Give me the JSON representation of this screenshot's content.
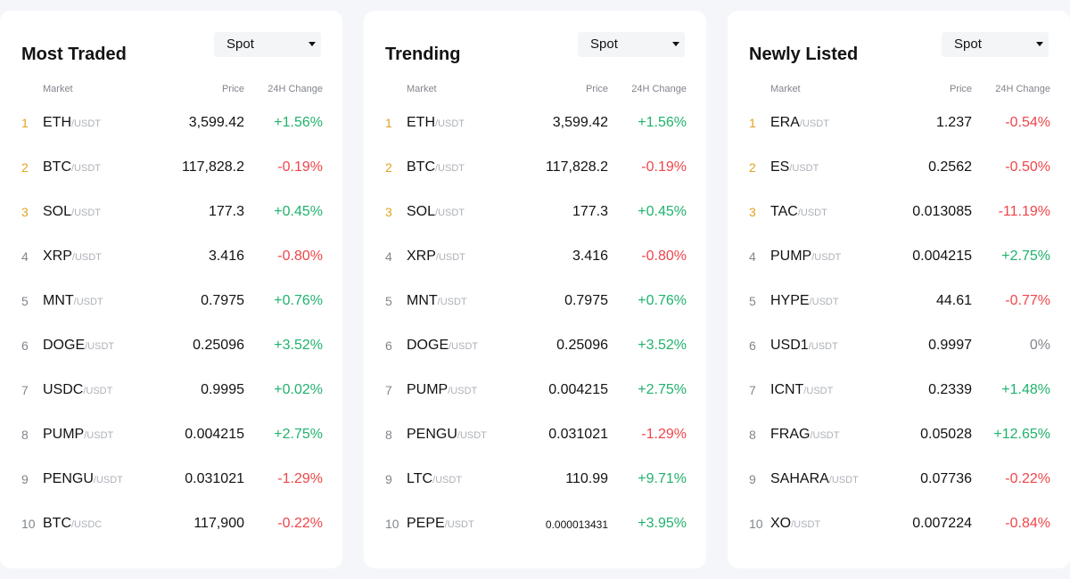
{
  "colors": {
    "up": "#20b26c",
    "down": "#ef454a",
    "top_rank": "#e0a320"
  },
  "headers": {
    "market": "Market",
    "price": "Price",
    "change": "24H Change"
  },
  "panels": [
    {
      "title": "Most Traded",
      "filter": "Spot",
      "rows": [
        {
          "rank": "1",
          "base": "ETH",
          "quote": "/USDT",
          "price": "3,599.42",
          "change": "+1.56%",
          "trend": "up"
        },
        {
          "rank": "2",
          "base": "BTC",
          "quote": "/USDT",
          "price": "117,828.2",
          "change": "-0.19%",
          "trend": "down"
        },
        {
          "rank": "3",
          "base": "SOL",
          "quote": "/USDT",
          "price": "177.3",
          "change": "+0.45%",
          "trend": "up"
        },
        {
          "rank": "4",
          "base": "XRP",
          "quote": "/USDT",
          "price": "3.416",
          "change": "-0.80%",
          "trend": "down"
        },
        {
          "rank": "5",
          "base": "MNT",
          "quote": "/USDT",
          "price": "0.7975",
          "change": "+0.76%",
          "trend": "up"
        },
        {
          "rank": "6",
          "base": "DOGE",
          "quote": "/USDT",
          "price": "0.25096",
          "change": "+3.52%",
          "trend": "up"
        },
        {
          "rank": "7",
          "base": "USDC",
          "quote": "/USDT",
          "price": "0.9995",
          "change": "+0.02%",
          "trend": "up"
        },
        {
          "rank": "8",
          "base": "PUMP",
          "quote": "/USDT",
          "price": "0.004215",
          "change": "+2.75%",
          "trend": "up"
        },
        {
          "rank": "9",
          "base": "PENGU",
          "quote": "/USDT",
          "price": "0.031021",
          "change": "-1.29%",
          "trend": "down"
        },
        {
          "rank": "10",
          "base": "BTC",
          "quote": "/USDC",
          "price": "117,900",
          "change": "-0.22%",
          "trend": "down"
        }
      ]
    },
    {
      "title": "Trending",
      "filter": "Spot",
      "rows": [
        {
          "rank": "1",
          "base": "ETH",
          "quote": "/USDT",
          "price": "3,599.42",
          "change": "+1.56%",
          "trend": "up"
        },
        {
          "rank": "2",
          "base": "BTC",
          "quote": "/USDT",
          "price": "117,828.2",
          "change": "-0.19%",
          "trend": "down"
        },
        {
          "rank": "3",
          "base": "SOL",
          "quote": "/USDT",
          "price": "177.3",
          "change": "+0.45%",
          "trend": "up"
        },
        {
          "rank": "4",
          "base": "XRP",
          "quote": "/USDT",
          "price": "3.416",
          "change": "-0.80%",
          "trend": "down"
        },
        {
          "rank": "5",
          "base": "MNT",
          "quote": "/USDT",
          "price": "0.7975",
          "change": "+0.76%",
          "trend": "up"
        },
        {
          "rank": "6",
          "base": "DOGE",
          "quote": "/USDT",
          "price": "0.25096",
          "change": "+3.52%",
          "trend": "up"
        },
        {
          "rank": "7",
          "base": "PUMP",
          "quote": "/USDT",
          "price": "0.004215",
          "change": "+2.75%",
          "trend": "up"
        },
        {
          "rank": "8",
          "base": "PENGU",
          "quote": "/USDT",
          "price": "0.031021",
          "change": "-1.29%",
          "trend": "down"
        },
        {
          "rank": "9",
          "base": "LTC",
          "quote": "/USDT",
          "price": "110.99",
          "change": "+9.71%",
          "trend": "up"
        },
        {
          "rank": "10",
          "base": "PEPE",
          "quote": "/USDT",
          "price": "0.000013431",
          "change": "+3.95%",
          "trend": "up"
        }
      ]
    },
    {
      "title": "Newly Listed",
      "filter": "Spot",
      "rows": [
        {
          "rank": "1",
          "base": "ERA",
          "quote": "/USDT",
          "price": "1.237",
          "change": "-0.54%",
          "trend": "down"
        },
        {
          "rank": "2",
          "base": "ES",
          "quote": "/USDT",
          "price": "0.2562",
          "change": "-0.50%",
          "trend": "down"
        },
        {
          "rank": "3",
          "base": "TAC",
          "quote": "/USDT",
          "price": "0.013085",
          "change": "-11.19%",
          "trend": "down"
        },
        {
          "rank": "4",
          "base": "PUMP",
          "quote": "/USDT",
          "price": "0.004215",
          "change": "+2.75%",
          "trend": "up"
        },
        {
          "rank": "5",
          "base": "HYPE",
          "quote": "/USDT",
          "price": "44.61",
          "change": "-0.77%",
          "trend": "down"
        },
        {
          "rank": "6",
          "base": "USD1",
          "quote": "/USDT",
          "price": "0.9997",
          "change": "0%",
          "trend": "flat"
        },
        {
          "rank": "7",
          "base": "ICNT",
          "quote": "/USDT",
          "price": "0.2339",
          "change": "+1.48%",
          "trend": "up"
        },
        {
          "rank": "8",
          "base": "FRAG",
          "quote": "/USDT",
          "price": "0.05028",
          "change": "+12.65%",
          "trend": "up"
        },
        {
          "rank": "9",
          "base": "SAHARA",
          "quote": "/USDT",
          "price": "0.07736",
          "change": "-0.22%",
          "trend": "down"
        },
        {
          "rank": "10",
          "base": "XO",
          "quote": "/USDT",
          "price": "0.007224",
          "change": "-0.84%",
          "trend": "down"
        }
      ]
    }
  ]
}
